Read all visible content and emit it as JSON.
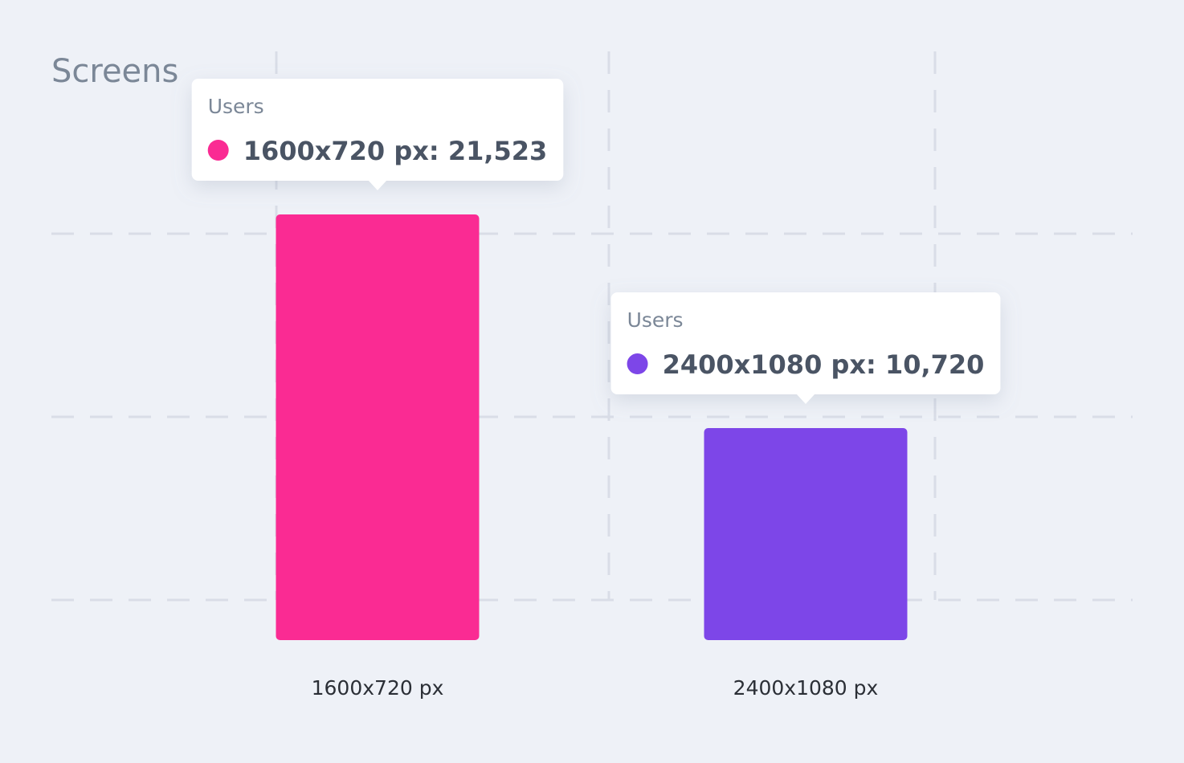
{
  "chart_data": {
    "type": "bar",
    "title": "Screens",
    "series_name": "Users",
    "categories": [
      "1600x720 px",
      "2400x1080 px"
    ],
    "values": [
      21523,
      10720
    ],
    "colors": [
      "#fa2b93",
      "#7d46e8"
    ],
    "tooltips": [
      "1600x720 px: 21,523",
      "2400x1080 px: 10,720"
    ],
    "ylim": [
      0,
      24000
    ]
  }
}
